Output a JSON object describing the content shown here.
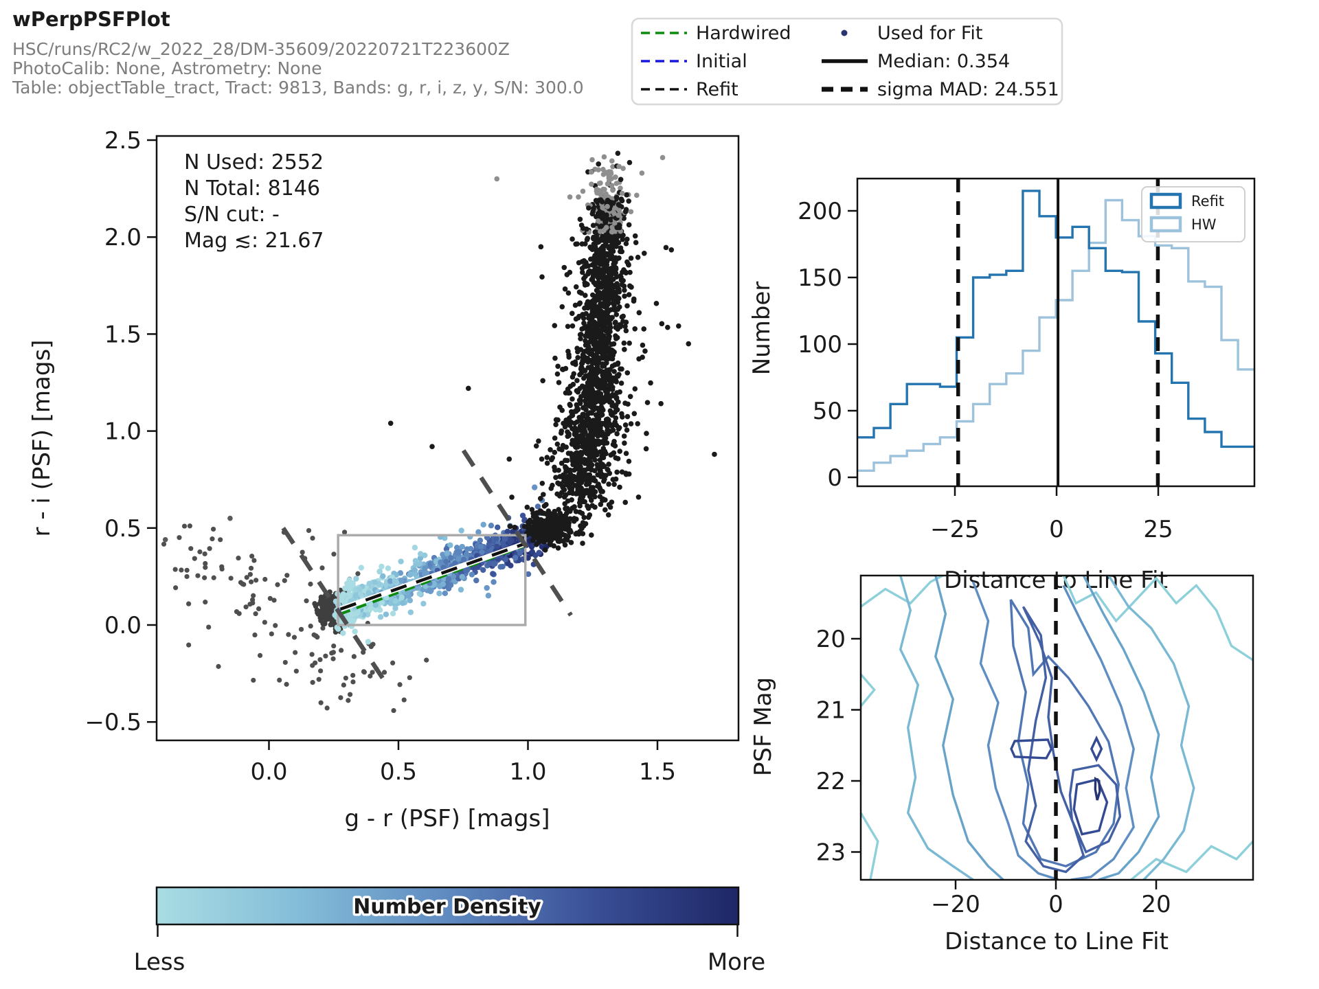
{
  "header": {
    "title": "wPerpPSFPlot",
    "line1": "HSC/runs/RC2/w_2022_28/DM-35609/20220721T223600Z",
    "line2": "PhotoCalib: None, Astrometry: None",
    "line3": "Table: objectTable_tract, Tract: 9813, Bands: g, r, i, z, y, S/N: 300.0"
  },
  "fit_legend": {
    "left": [
      {
        "label": "Hardwired",
        "color": "#0e8a0e",
        "style": "dashed"
      },
      {
        "label": "Initial",
        "color": "#1818dd",
        "style": "dashed"
      },
      {
        "label": "Refit",
        "color": "#111111",
        "style": "dashed"
      }
    ],
    "right": [
      {
        "label": "Used for Fit",
        "color": "#2a3470",
        "style": "dot"
      },
      {
        "label": "Median: 0.354",
        "color": "#111111",
        "style": "solid"
      },
      {
        "label": "sigma MAD: 24.551",
        "color": "#111111",
        "style": "dashed-thick"
      }
    ]
  },
  "colorbar": {
    "title": "Number Density",
    "less": "Less",
    "more": "More",
    "stops": [
      "#a9dde3",
      "#83bcd8",
      "#5f8ac0",
      "#3a4f97",
      "#1e2766"
    ]
  },
  "chart_data": [
    {
      "id": "color_color_scatter",
      "type": "scatter",
      "xlabel": "g - r (PSF) [mags]",
      "ylabel": "r - i (PSF) [mags]",
      "xlim": [
        -0.434,
        1.814
      ],
      "ylim": [
        -0.595,
        2.521
      ],
      "xticks": [
        0.0,
        0.5,
        1.0,
        1.5
      ],
      "xtick_labels": [
        "0.0",
        "0.5",
        "1.0",
        "1.5"
      ],
      "yticks": [
        -0.5,
        0.0,
        0.5,
        1.0,
        1.5,
        2.0,
        2.5
      ],
      "ytick_labels": [
        "−0.5",
        "0.0",
        "0.5",
        "1.0",
        "1.5",
        "2.0",
        "2.5"
      ],
      "annotations": [
        "N Used: 2552",
        "N Total: 8146",
        "S/N cut: -",
        "Mag ≲: 21.67"
      ],
      "n_used": 2552,
      "n_total": 8146,
      "fit_box": {
        "x0": 0.267,
        "y0": 0.0,
        "x1": 0.99,
        "y1": 0.463,
        "color": "#ababab"
      },
      "fit_lines": {
        "hardwired": {
          "x0": 0.276,
          "y0": 0.057,
          "x1": 0.988,
          "y1": 0.408,
          "color": "#0e8a0e"
        },
        "initial": {
          "x0": 0.276,
          "y0": 0.075,
          "x1": 0.988,
          "y1": 0.422,
          "color": "#1818dd"
        },
        "refit": {
          "x0": 0.276,
          "y0": 0.082,
          "x1": 0.988,
          "y1": 0.419,
          "color": "#111111"
        }
      },
      "cut_lines": [
        {
          "x0": 0.055,
          "y0": 0.5,
          "x1": 0.452,
          "y1": -0.3
        },
        {
          "x0": 0.751,
          "y0": 0.9,
          "x1": 1.166,
          "y1": 0.05
        }
      ],
      "point_colors": {
        "black": "#1a1a1a",
        "gray": "#4f4f4f",
        "light_gray": "#8f8f8f"
      },
      "scatter_gen": {
        "seed": 12345,
        "locus": {
          "n": 1050,
          "t_max": 1.07,
          "x0": 0.27,
          "y0": 0.07,
          "x1": 1.005,
          "y1": 0.44,
          "sigma_perp": 0.042,
          "start_blob_n": 140,
          "outlier_frac": 0.07
        },
        "branch": {
          "n": 1650,
          "y_base": 0.48,
          "y_span": 1.92,
          "x_base": 1.08,
          "x_amp": 0.24,
          "pow": 0.3
        },
        "turn": {
          "n": 260,
          "cx": 1.09,
          "cy": 0.5,
          "sx": 0.05,
          "sy": 0.045
        },
        "field": {
          "n": 90
        },
        "gray_clump": {
          "n": 210,
          "cx": 0.245,
          "cy": 0.075,
          "sx": 0.028,
          "sy": 0.04
        },
        "gray_sparse": {
          "n": 135
        },
        "isolated": [
          [
            0.77,
            1.22,
            "#1a1a1a"
          ],
          [
            0.47,
            1.04,
            "#1a1a1a"
          ],
          [
            1.52,
            2.41,
            "#8f8f8f"
          ],
          [
            1.44,
            2.33,
            "#8f8f8f"
          ],
          [
            1.62,
            1.45,
            "#1a1a1a"
          ],
          [
            1.05,
            1.95,
            "#1a1a1a"
          ],
          [
            0.63,
            0.92,
            "#1a1a1a"
          ],
          [
            1.72,
            0.88,
            "#1a1a1a"
          ],
          [
            -0.4,
            0.44,
            "#5a5a5a"
          ],
          [
            -0.15,
            0.55,
            "#5a5a5a"
          ],
          [
            0.88,
            2.3,
            "#8f8f8f"
          ]
        ]
      }
    },
    {
      "id": "distance_histogram",
      "type": "histogram",
      "xlabel": "Distance to Line Fit",
      "ylabel": "Number",
      "xlim": [
        -49,
        48.68
      ],
      "ylim": [
        -6.7,
        224
      ],
      "xticks": [
        -25,
        0,
        25
      ],
      "xtick_labels": [
        "−25",
        "0",
        "25"
      ],
      "yticks": [
        0,
        50,
        100,
        150,
        200
      ],
      "ytick_labels": [
        "0",
        "50",
        "100",
        "150",
        "200"
      ],
      "bin_start": -49,
      "bin_width": 4.07,
      "series": [
        {
          "name": "Refit",
          "color": "#2474b0",
          "values": [
            30,
            37,
            55,
            70,
            70,
            68,
            105,
            150,
            152,
            155,
            215,
            196,
            180,
            188,
            172,
            155,
            154,
            117,
            93,
            71,
            44,
            34,
            23,
            23
          ]
        },
        {
          "name": "HW",
          "color": "#9cc2dc",
          "values": [
            5,
            11,
            16,
            20,
            25,
            30,
            42,
            55,
            70,
            78,
            95,
            120,
            133,
            155,
            176,
            208,
            193,
            181,
            174,
            172,
            147,
            143,
            103,
            81
          ]
        }
      ],
      "median": 0.354,
      "sigma_mad": 24.551,
      "legend": [
        "Refit",
        "HW"
      ]
    },
    {
      "id": "psf_mag_contour",
      "type": "heatmap",
      "xlabel": "Distance to Line Fit",
      "ylabel": "PSF Mag",
      "xlim": [
        -38.9,
        39.3
      ],
      "ylim": [
        19.11,
        23.39
      ],
      "y_inverted": true,
      "xticks": [
        -20,
        0,
        20
      ],
      "xtick_labels": [
        "−20",
        "0",
        "20"
      ],
      "yticks": [
        20,
        21,
        22,
        23
      ],
      "ytick_labels": [
        "20",
        "21",
        "22",
        "23"
      ],
      "zero_line": 0,
      "levels_colors": [
        "#8ed0da",
        "#79b9d4",
        "#68a3ca",
        "#5e8ec2",
        "#5077b4",
        "#4360a4",
        "#344b94",
        "#273572"
      ],
      "paths": [
        {
          "level": 0,
          "closed": false,
          "pts": [
            [
              -38.9,
              19.55
            ],
            [
              -34,
              19.3
            ],
            [
              -29,
              19.5
            ],
            [
              -25,
              19.2
            ],
            [
              -22.5,
              19.11
            ]
          ]
        },
        {
          "level": 0,
          "closed": false,
          "pts": [
            [
              1.5,
              19.11
            ],
            [
              4,
              19.5
            ],
            [
              8,
              19.35
            ],
            [
              12,
              19.75
            ],
            [
              16,
              19.45
            ],
            [
              20,
              19.15
            ],
            [
              24,
              19.5
            ],
            [
              28,
              19.25
            ],
            [
              32,
              19.6
            ],
            [
              35,
              20.1
            ],
            [
              39.3,
              20.3
            ]
          ]
        },
        {
          "level": 0,
          "closed": false,
          "pts": [
            [
              -38.9,
              20.5
            ],
            [
              -36.2,
              20.72
            ],
            [
              -38.9,
              20.95
            ]
          ]
        },
        {
          "level": 0,
          "closed": false,
          "pts": [
            [
              -38.9,
              22.45
            ],
            [
              -35.5,
              22.85
            ],
            [
              -37,
              23.39
            ]
          ]
        },
        {
          "level": 0,
          "closed": false,
          "pts": [
            [
              15,
              23.39
            ],
            [
              20,
              23.1
            ],
            [
              26,
              23.28
            ],
            [
              31,
              22.92
            ],
            [
              36,
              23.1
            ],
            [
              39.3,
              22.85
            ]
          ]
        },
        {
          "level": 1,
          "closed": false,
          "pts": [
            [
              -31,
              19.11
            ],
            [
              -29,
              19.6
            ],
            [
              -31,
              20.15
            ],
            [
              -27.5,
              20.65
            ],
            [
              -29.5,
              21.25
            ],
            [
              -28,
              21.95
            ],
            [
              -29.5,
              22.45
            ],
            [
              -25.5,
              22.95
            ],
            [
              -20.5,
              23.2
            ],
            [
              -16.5,
              23.39
            ]
          ]
        },
        {
          "level": 1,
          "closed": false,
          "pts": [
            [
              10.5,
              19.11
            ],
            [
              14.5,
              19.55
            ],
            [
              19,
              19.85
            ],
            [
              23.5,
              20.35
            ],
            [
              26.5,
              20.95
            ],
            [
              25,
              21.5
            ],
            [
              27.5,
              22.1
            ],
            [
              25.5,
              22.7
            ],
            [
              21.5,
              23.1
            ],
            [
              17.5,
              23.39
            ]
          ]
        },
        {
          "level": 2,
          "closed": false,
          "pts": [
            [
              -24,
              19.11
            ],
            [
              -22,
              19.65
            ],
            [
              -24,
              20.25
            ],
            [
              -20.5,
              20.85
            ],
            [
              -22.5,
              21.5
            ],
            [
              -20.5,
              22.2
            ],
            [
              -17.5,
              22.85
            ],
            [
              -13.5,
              23.2
            ],
            [
              -10.5,
              23.39
            ]
          ]
        },
        {
          "level": 2,
          "closed": false,
          "pts": [
            [
              5.5,
              19.11
            ],
            [
              9.5,
              19.65
            ],
            [
              13.5,
              20.15
            ],
            [
              17.5,
              20.75
            ],
            [
              20.5,
              21.35
            ],
            [
              19,
              21.95
            ],
            [
              20.5,
              22.5
            ],
            [
              16.5,
              23.0
            ],
            [
              12.5,
              23.3
            ],
            [
              8.5,
              23.39
            ]
          ]
        },
        {
          "level": 3,
          "closed": false,
          "pts": [
            [
              -16.5,
              19.2
            ],
            [
              -13.5,
              19.75
            ],
            [
              -15,
              20.35
            ],
            [
              -11.5,
              20.9
            ],
            [
              -13.5,
              21.5
            ],
            [
              -12,
              22.1
            ],
            [
              -9.5,
              22.6
            ],
            [
              -7.5,
              23.05
            ],
            [
              -3.5,
              23.3
            ],
            [
              0.5,
              23.39
            ]
          ]
        },
        {
          "level": 3,
          "closed": false,
          "pts": [
            [
              1.5,
              19.25
            ],
            [
              5,
              19.75
            ],
            [
              9,
              20.3
            ],
            [
              13,
              20.95
            ],
            [
              15.5,
              21.55
            ],
            [
              14,
              22.1
            ],
            [
              15.5,
              22.65
            ],
            [
              11.5,
              23.1
            ],
            [
              7,
              23.35
            ],
            [
              3,
              23.39
            ]
          ]
        },
        {
          "level": 4,
          "closed": true,
          "pts": [
            [
              -9,
              19.45
            ],
            [
              -5.5,
              19.85
            ],
            [
              -4.5,
              20.5
            ],
            [
              -1.5,
              20.25
            ],
            [
              2.5,
              20.55
            ],
            [
              6.5,
              20.95
            ],
            [
              10.5,
              21.45
            ],
            [
              12.5,
              22.05
            ],
            [
              11.5,
              22.6
            ],
            [
              8,
              23.0
            ],
            [
              2,
              23.2
            ],
            [
              -3,
              23.1
            ],
            [
              -6.5,
              22.6
            ],
            [
              -5.5,
              22.05
            ],
            [
              -7.5,
              21.45
            ],
            [
              -6,
              20.75
            ],
            [
              -8.5,
              20.1
            ]
          ]
        },
        {
          "level": 5,
          "closed": true,
          "pts": [
            [
              -6.5,
              19.55
            ],
            [
              -3,
              19.95
            ],
            [
              -2,
              20.55
            ],
            [
              -4,
              21.15
            ],
            [
              -5.5,
              21.85
            ],
            [
              -4,
              22.35
            ],
            [
              -6,
              22.85
            ],
            [
              -2.5,
              23.2
            ],
            [
              2,
              23.28
            ],
            [
              5.5,
              23.05
            ],
            [
              3.5,
              22.6
            ],
            [
              1,
              22.15
            ],
            [
              -0.5,
              21.6
            ],
            [
              -1.5,
              21.1
            ],
            [
              -0.8,
              20.55
            ],
            [
              -3.2,
              20.05
            ]
          ]
        },
        {
          "level": 5,
          "closed": true,
          "pts": [
            [
              3.5,
              21.85
            ],
            [
              8.5,
              21.78
            ],
            [
              12,
              22.05
            ],
            [
              12.8,
              22.5
            ],
            [
              10.5,
              22.85
            ],
            [
              6,
              23.0
            ],
            [
              3.2,
              22.55
            ],
            [
              2.8,
              22.2
            ]
          ]
        },
        {
          "level": 6,
          "closed": true,
          "pts": [
            [
              -8.2,
              21.44
            ],
            [
              -1.6,
              21.42
            ],
            [
              -0.9,
              21.55
            ],
            [
              -1.9,
              21.68
            ],
            [
              -8.2,
              21.66
            ],
            [
              -8.9,
              21.55
            ]
          ]
        },
        {
          "level": 6,
          "closed": true,
          "pts": [
            [
              7.1,
              21.55
            ],
            [
              8.1,
              21.4
            ],
            [
              9.1,
              21.55
            ],
            [
              8.1,
              21.7
            ]
          ]
        },
        {
          "level": 6,
          "closed": true,
          "pts": [
            [
              4.2,
              22.05
            ],
            [
              8.3,
              21.98
            ],
            [
              10.2,
              22.3
            ],
            [
              8.6,
              22.7
            ],
            [
              5.2,
              22.75
            ],
            [
              3.6,
              22.4
            ]
          ]
        },
        {
          "level": 7,
          "closed": true,
          "pts": [
            [
              7.9,
              21.97
            ],
            [
              8.6,
              22.0
            ],
            [
              8.75,
              22.15
            ],
            [
              8.25,
              22.27
            ],
            [
              7.85,
              22.12
            ]
          ]
        }
      ]
    }
  ]
}
